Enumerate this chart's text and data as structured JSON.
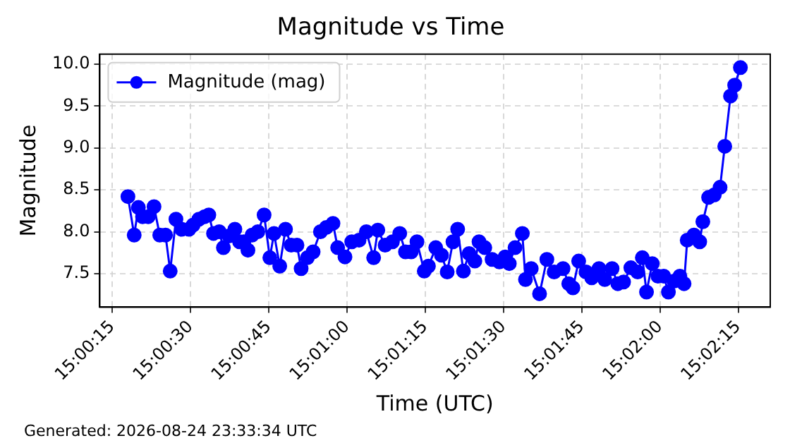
{
  "chart_data": {
    "type": "line",
    "title": "Magnitude vs Time",
    "xlabel": "Time (UTC)",
    "ylabel": "Magnitude",
    "annotations": [
      "Generated: 2026-08-24 23:33:34 UTC"
    ],
    "xlim": [
      15.0035,
      15.0392
    ],
    "xticks": [
      {
        "value": 15.004167,
        "label": "15:00:15"
      },
      {
        "value": 15.008333,
        "label": "15:00:30"
      },
      {
        "value": 15.0125,
        "label": "15:00:45"
      },
      {
        "value": 15.016667,
        "label": "15:01:00"
      },
      {
        "value": 15.020833,
        "label": "15:01:15"
      },
      {
        "value": 15.025,
        "label": "15:01:30"
      },
      {
        "value": 15.029167,
        "label": "15:01:45"
      },
      {
        "value": 15.033333,
        "label": "15:02:00"
      },
      {
        "value": 15.0375,
        "label": "15:02:15"
      }
    ],
    "ylim": [
      7.1,
      10.12
    ],
    "yticks": [
      7.5,
      {
        "value": 8,
        "label": "8.0"
      },
      8.5,
      {
        "value": 9,
        "label": "9.0"
      },
      9.5,
      {
        "value": 10,
        "label": "10.0"
      }
    ],
    "grid": true,
    "legend": "top left",
    "marker": "circle",
    "line_style": "solid",
    "x": [
      15.005,
      15.005333,
      15.005556,
      15.005778,
      15.006083,
      15.006389,
      15.006694,
      15.007,
      15.00725,
      15.007556,
      15.007861,
      15.00825,
      15.008472,
      15.008778,
      15.009083,
      15.009306,
      15.009556,
      15.009861,
      15.010083,
      15.010389,
      15.010694,
      15.010944,
      15.011167,
      15.011389,
      15.011611,
      15.011917,
      15.01225,
      15.012556,
      15.012778,
      15.013083,
      15.013389,
      15.013694,
      15.014,
      15.014222,
      15.014556,
      15.014861,
      15.01525,
      15.015556,
      15.015917,
      15.016167,
      15.016556,
      15.016917,
      15.017306,
      15.017694,
      15.018083,
      15.018306,
      15.018694,
      15.019083,
      15.019472,
      15.019778,
      15.020083,
      15.020389,
      15.020778,
      15.021,
      15.021389,
      15.021694,
      15.022,
      15.022306,
      15.022556,
      15.022861,
      15.023167,
      15.023472,
      15.023694,
      15.024,
      15.024389,
      15.024778,
      15.025083,
      15.025306,
      15.025611,
      15.026,
      15.026167,
      15.026472,
      15.026917,
      15.027306,
      15.027694,
      15.028167,
      15.028472,
      15.028694,
      15.029,
      15.029389,
      15.029694,
      15.030083,
      15.030389,
      15.030778,
      15.031083,
      15.031389,
      15.031778,
      15.032139,
      15.032389,
      15.032611,
      15.032917,
      15.033222,
      15.033528,
      15.033778,
      15.034083,
      15.034389,
      15.034611,
      15.034778,
      15.035139,
      15.035444,
      15.035611,
      15.035917,
      15.036222,
      15.036528,
      15.036778,
      15.037083,
      15.037306,
      15.037611
    ],
    "series": [
      {
        "name": "Magnitude (mag)",
        "color": "#0000ff",
        "values": [
          8.42,
          7.96,
          8.29,
          8.18,
          8.18,
          8.3,
          7.96,
          7.96,
          7.53,
          8.15,
          8.03,
          8.03,
          8.08,
          8.15,
          8.18,
          8.2,
          7.98,
          8.0,
          7.81,
          7.95,
          8.03,
          7.88,
          7.88,
          7.78,
          7.96,
          8.0,
          8.2,
          7.69,
          7.98,
          7.59,
          8.03,
          7.84,
          7.84,
          7.56,
          7.69,
          7.76,
          8.0,
          8.05,
          8.1,
          7.81,
          7.7,
          7.88,
          7.9,
          8.0,
          7.69,
          8.02,
          7.84,
          7.88,
          7.98,
          7.76,
          7.76,
          7.88,
          7.53,
          7.59,
          7.81,
          7.72,
          7.52,
          7.88,
          8.03,
          7.53,
          7.74,
          7.65,
          7.88,
          7.81,
          7.67,
          7.64,
          7.7,
          7.62,
          7.81,
          7.98,
          7.43,
          7.56,
          7.26,
          7.67,
          7.52,
          7.56,
          7.38,
          7.33,
          7.65,
          7.52,
          7.45,
          7.56,
          7.43,
          7.56,
          7.38,
          7.4,
          7.57,
          7.52,
          7.69,
          7.28,
          7.62,
          7.47,
          7.47,
          7.28,
          7.41,
          7.47,
          7.38,
          7.9,
          7.96,
          7.88,
          8.12,
          8.41,
          8.44,
          8.53,
          9.02,
          9.62,
          9.75,
          9.96
        ]
      }
    ]
  }
}
